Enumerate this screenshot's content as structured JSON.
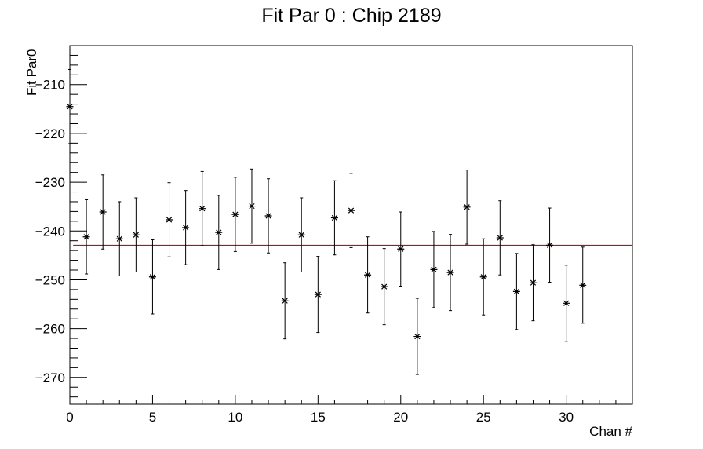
{
  "chart_data": {
    "type": "scatter",
    "title": "Fit Par 0 : Chip 2189",
    "xlabel": "Chan #",
    "ylabel": "Fit Par0",
    "xlim": [
      0,
      34
    ],
    "ylim": [
      -275.5,
      -202
    ],
    "xticks": [
      0,
      5,
      10,
      15,
      20,
      25,
      30
    ],
    "yticks": [
      -210,
      -220,
      -230,
      -240,
      -250,
      -260,
      -270
    ],
    "xtick_labels": [
      "0",
      "5",
      "10",
      "15",
      "20",
      "25",
      "30"
    ],
    "ytick_labels": [
      "−210",
      "−220",
      "−230",
      "−240",
      "−250",
      "−260",
      "−270"
    ],
    "grid": false,
    "marker": "asterisk",
    "point_color": "#000000",
    "points": [
      {
        "x": 0,
        "y": -214.5,
        "err": 7.6
      },
      {
        "x": 1,
        "y": -241.2,
        "err": 7.6
      },
      {
        "x": 2,
        "y": -236.1,
        "err": 7.6
      },
      {
        "x": 3,
        "y": -241.6,
        "err": 7.6
      },
      {
        "x": 4,
        "y": -240.8,
        "err": 7.6
      },
      {
        "x": 5,
        "y": -249.4,
        "err": 7.6
      },
      {
        "x": 6,
        "y": -237.7,
        "err": 7.6
      },
      {
        "x": 7,
        "y": -239.3,
        "err": 7.6
      },
      {
        "x": 8,
        "y": -235.4,
        "err": 7.6
      },
      {
        "x": 9,
        "y": -240.3,
        "err": 7.6
      },
      {
        "x": 10,
        "y": -236.6,
        "err": 7.6
      },
      {
        "x": 11,
        "y": -234.9,
        "err": 7.6
      },
      {
        "x": 12,
        "y": -236.9,
        "err": 7.6
      },
      {
        "x": 13,
        "y": -254.3,
        "err": 7.8
      },
      {
        "x": 14,
        "y": -240.8,
        "err": 7.6
      },
      {
        "x": 15,
        "y": -253.0,
        "err": 7.8
      },
      {
        "x": 16,
        "y": -237.3,
        "err": 7.6
      },
      {
        "x": 17,
        "y": -235.8,
        "err": 7.6
      },
      {
        "x": 18,
        "y": -249.0,
        "err": 7.8
      },
      {
        "x": 19,
        "y": -251.4,
        "err": 7.8
      },
      {
        "x": 20,
        "y": -243.7,
        "err": 7.6
      },
      {
        "x": 21,
        "y": -261.6,
        "err": 7.8
      },
      {
        "x": 22,
        "y": -247.9,
        "err": 7.8
      },
      {
        "x": 23,
        "y": -248.5,
        "err": 7.8
      },
      {
        "x": 24,
        "y": -235.1,
        "err": 7.6
      },
      {
        "x": 25,
        "y": -249.4,
        "err": 7.8
      },
      {
        "x": 26,
        "y": -241.4,
        "err": 7.6
      },
      {
        "x": 27,
        "y": -252.4,
        "err": 7.8
      },
      {
        "x": 28,
        "y": -250.6,
        "err": 7.8
      },
      {
        "x": 29,
        "y": -242.9,
        "err": 7.6
      },
      {
        "x": 30,
        "y": -254.8,
        "err": 7.8
      },
      {
        "x": 31,
        "y": -251.1,
        "err": 7.8
      }
    ],
    "fit_line": {
      "y": -243.0,
      "x_start": 0.2,
      "x_end": 34,
      "color": "#e00000"
    }
  }
}
